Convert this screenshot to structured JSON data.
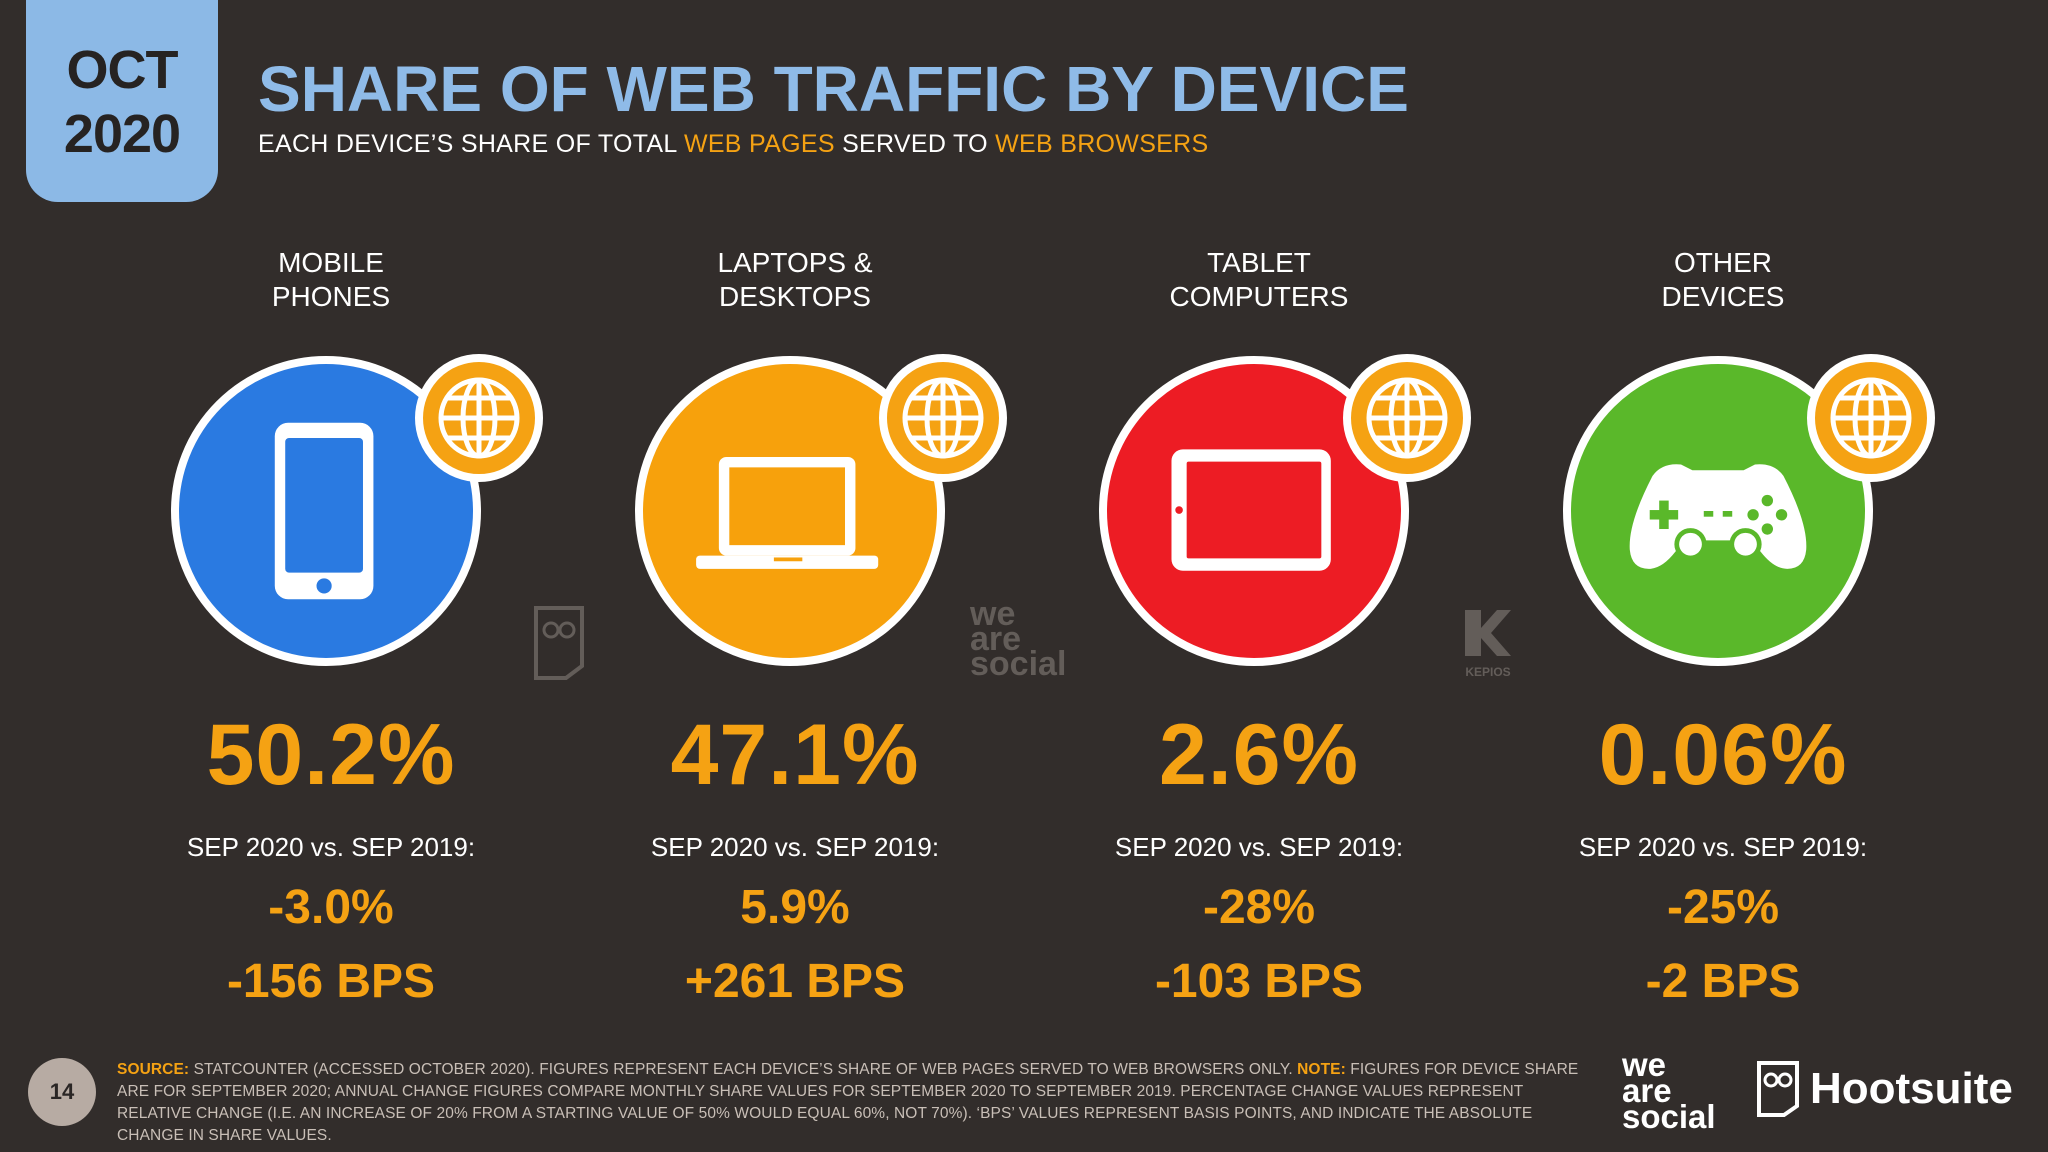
{
  "badge": {
    "month": "OCT",
    "year": "2020"
  },
  "title": "SHARE OF WEB TRAFFIC BY DEVICE",
  "subtitle": {
    "part1": "EACH DEVICE’S SHARE OF TOTAL ",
    "highlight1": "WEB PAGES",
    "part2": " SERVED TO ",
    "highlight2": "WEB BROWSERS"
  },
  "devices": [
    {
      "label_line1": "MOBILE",
      "label_line2": "PHONES",
      "share": "50.2%",
      "period": "SEP 2020 vs. SEP 2019:",
      "change_pct": "-3.0%",
      "change_bps": "-156 BPS",
      "color": "#2a7ae1",
      "icon": "mobile-phone-icon"
    },
    {
      "label_line1": "LAPTOPS &",
      "label_line2": "DESKTOPS",
      "share": "47.1%",
      "period": "SEP 2020 vs. SEP 2019:",
      "change_pct": "5.9%",
      "change_bps": "+261 BPS",
      "color": "#f7a10c",
      "icon": "laptop-icon"
    },
    {
      "label_line1": "TABLET",
      "label_line2": "COMPUTERS",
      "share": "2.6%",
      "period": "SEP 2020 vs. SEP 2019:",
      "change_pct": "-28%",
      "change_bps": "-103 BPS",
      "color": "#ed1c24",
      "icon": "tablet-icon"
    },
    {
      "label_line1": "OTHER",
      "label_line2": "DEVICES",
      "share": "0.06%",
      "period": "SEP 2020 vs. SEP 2019:",
      "change_pct": "-25%",
      "change_bps": "-2 BPS",
      "color": "#5ab82a",
      "icon": "game-controller-icon"
    }
  ],
  "watermarks": {
    "we_are_social_1": "we",
    "we_are_social_2": "are",
    "we_are_social_3": "social",
    "kepios": "KEPIOS"
  },
  "footer": {
    "page_number": "14",
    "source_label": "SOURCE:",
    "source_text": " STATCOUNTER (ACCESSED OCTOBER 2020). FIGURES REPRESENT EACH DEVICE’S SHARE OF WEB PAGES SERVED TO WEB BROWSERS ONLY. ",
    "note_label": "NOTE:",
    "note_text": " FIGURES FOR DEVICE SHARE ARE FOR SEPTEMBER 2020; ANNUAL CHANGE FIGURES COMPARE MONTHLY SHARE VALUES FOR SEPTEMBER 2020 TO SEPTEMBER 2019. PERCENTAGE CHANGE VALUES REPRESENT RELATIVE CHANGE (I.E. AN INCREASE OF 20% FROM A STARTING VALUE OF 50% WOULD EQUAL 60%, NOT 70%). ‘BPS’ VALUES REPRESENT BASIS POINTS, AND INDICATE THE ABSOLUTE CHANGE IN SHARE VALUES.",
    "logo_we": "we",
    "logo_are": "are",
    "logo_social": "social",
    "logo_hootsuite": "Hootsuite"
  },
  "colors": {
    "background": "#322d2b",
    "accent": "#f5a213",
    "title": "#8fbbe8",
    "badge": "#8cb9e6"
  }
}
